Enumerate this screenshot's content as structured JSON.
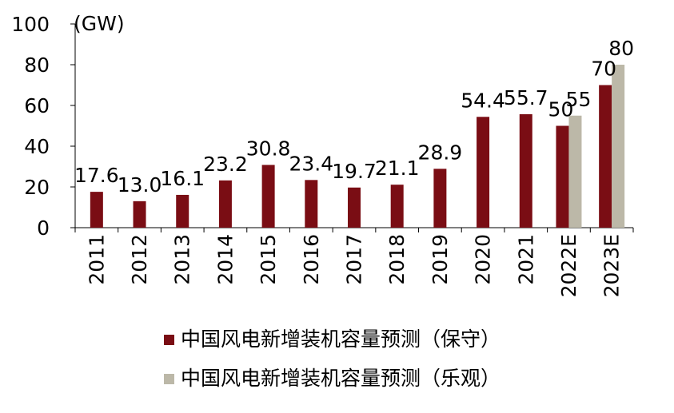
{
  "chart_data": {
    "type": "bar",
    "unit_label": "(GW)",
    "categories": [
      "2011",
      "2012",
      "2013",
      "2014",
      "2015",
      "2016",
      "2017",
      "2018",
      "2019",
      "2020",
      "2021",
      "2022E",
      "2023E"
    ],
    "series": [
      {
        "name": "中国风电新增装机容量预测（保守）",
        "color": "#7a0d14",
        "values": [
          17.6,
          13.0,
          16.1,
          23.2,
          30.8,
          23.4,
          19.7,
          21.1,
          28.9,
          54.4,
          55.7,
          50,
          70
        ],
        "labels": [
          "17.6",
          "13.0",
          "16.1",
          "23.2",
          "30.8",
          "23.4",
          "19.7",
          "21.1",
          "28.9",
          "54.4",
          "55.7",
          "50",
          "70"
        ]
      },
      {
        "name": "中国风电新增装机容量预测（乐观）",
        "color": "#bcb8a8",
        "values": [
          null,
          null,
          null,
          null,
          null,
          null,
          null,
          null,
          null,
          null,
          null,
          55,
          80
        ],
        "labels": [
          "",
          "",
          "",
          "",
          "",
          "",
          "",
          "",
          "",
          "",
          "",
          "55",
          "80"
        ]
      }
    ],
    "ylim": [
      0,
      100
    ],
    "yticks": [
      0,
      20,
      40,
      60,
      80,
      100
    ],
    "grid": false,
    "legend_position": "bottom"
  }
}
